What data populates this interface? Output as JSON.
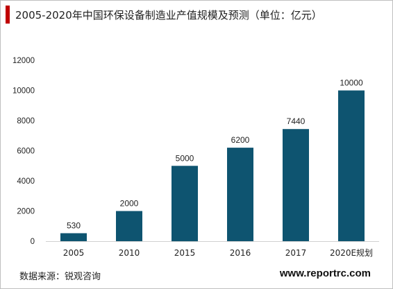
{
  "header": {
    "title": "2005-2020年中国环保设备制造业产值规模及预测（单位：亿元）",
    "accent_color": "#c00000"
  },
  "chart_data": {
    "type": "bar",
    "categories": [
      "2005",
      "2010",
      "2015",
      "2016",
      "2017",
      "2020E规划"
    ],
    "values": [
      530,
      2000,
      5000,
      6200,
      7440,
      10000
    ],
    "data_labels": [
      "530",
      "2000",
      "5000",
      "6200",
      "7440",
      "10000"
    ],
    "yticks": [
      0,
      2000,
      4000,
      6000,
      8000,
      10000,
      12000
    ],
    "ylim": [
      0,
      12000
    ],
    "grid": false,
    "legend": "none",
    "bar_color": "#0e5470"
  },
  "footer": {
    "source": "数据来源：锐观咨询",
    "brand": "www.reportrc.com"
  }
}
